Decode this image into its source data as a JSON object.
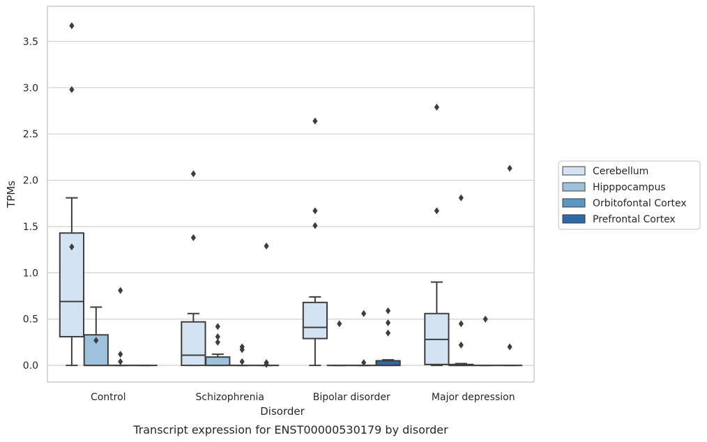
{
  "chart_data": {
    "type": "box",
    "title": "",
    "caption": "Transcript expression for ENST00000530179 by disorder",
    "xlabel": "Disorder",
    "ylabel": "TPMs",
    "ylim": [
      -0.18,
      3.88
    ],
    "yticks": [
      0.0,
      0.5,
      1.0,
      1.5,
      2.0,
      2.5,
      3.0,
      3.5
    ],
    "ytick_labels": [
      "0.0",
      "0.5",
      "1.0",
      "1.5",
      "2.0",
      "2.5",
      "3.0",
      "3.5"
    ],
    "grid": "horizontal",
    "legend_position": "right",
    "categories": [
      "Control",
      "Schizophrenia",
      "Bipolar disorder",
      "Major depression"
    ],
    "series": [
      {
        "name": "Cerebellum",
        "color": "#d3e3f1",
        "boxes": [
          {
            "q1": 0.31,
            "median": 0.69,
            "q3": 1.43,
            "whislo": 0.0,
            "whishi": 1.81,
            "fliers": [
              3.67,
              2.98,
              1.28
            ]
          },
          {
            "q1": 0.0,
            "median": 0.11,
            "q3": 0.47,
            "whislo": 0.0,
            "whishi": 0.56,
            "fliers": [
              2.07,
              1.38
            ]
          },
          {
            "q1": 0.29,
            "median": 0.41,
            "q3": 0.68,
            "whislo": 0.0,
            "whishi": 0.74,
            "fliers": [
              2.64,
              1.67,
              1.51
            ]
          },
          {
            "q1": 0.01,
            "median": 0.28,
            "q3": 0.56,
            "whislo": 0.0,
            "whishi": 0.9,
            "fliers": [
              2.79,
              1.67
            ]
          }
        ]
      },
      {
        "name": "Hipppocampus",
        "color": "#9ec2dc",
        "boxes": [
          {
            "q1": 0.0,
            "median": 0.0,
            "q3": 0.33,
            "whislo": 0.0,
            "whishi": 0.63,
            "fliers": [
              0.27
            ]
          },
          {
            "q1": 0.0,
            "median": 0.0,
            "q3": 0.09,
            "whislo": 0.0,
            "whishi": 0.12,
            "fliers": [
              0.42,
              0.31,
              0.25
            ]
          },
          {
            "q1": 0.0,
            "median": 0.0,
            "q3": 0.0,
            "whislo": 0.0,
            "whishi": 0.0,
            "fliers": [
              0.45
            ]
          },
          {
            "q1": 0.0,
            "median": 0.0,
            "q3": 0.01,
            "whislo": 0.0,
            "whishi": 0.02,
            "fliers": [
              0.45,
              0.22,
              1.81
            ]
          }
        ]
      },
      {
        "name": "Orbitofontal Cortex",
        "color": "#5b95c2",
        "boxes": [
          {
            "q1": 0.0,
            "median": 0.0,
            "q3": 0.0,
            "whislo": 0.0,
            "whishi": 0.0,
            "fliers": [
              0.81,
              0.12,
              0.04
            ]
          },
          {
            "q1": 0.0,
            "median": 0.0,
            "q3": 0.0,
            "whislo": 0.0,
            "whishi": 0.0,
            "fliers": [
              0.2,
              0.17,
              0.04
            ]
          },
          {
            "q1": 0.0,
            "median": 0.0,
            "q3": 0.0,
            "whislo": 0.0,
            "whishi": 0.0,
            "fliers": [
              0.56,
              0.03
            ]
          },
          {
            "q1": 0.0,
            "median": 0.0,
            "q3": 0.0,
            "whislo": 0.0,
            "whishi": 0.0,
            "fliers": [
              0.5
            ]
          }
        ]
      },
      {
        "name": "Prefrontal Cortex",
        "color": "#2f6aa6",
        "boxes": [
          {
            "q1": 0.0,
            "median": 0.0,
            "q3": 0.0,
            "whislo": 0.0,
            "whishi": 0.0,
            "fliers": []
          },
          {
            "q1": 0.0,
            "median": 0.0,
            "q3": 0.0,
            "whislo": 0.0,
            "whishi": 0.0,
            "fliers": [
              1.29,
              0.03,
              0.01
            ]
          },
          {
            "q1": 0.0,
            "median": 0.0,
            "q3": 0.05,
            "whislo": 0.0,
            "whishi": 0.06,
            "fliers": [
              0.59,
              0.46,
              0.35
            ]
          },
          {
            "q1": 0.0,
            "median": 0.0,
            "q3": 0.0,
            "whislo": 0.0,
            "whishi": 0.0,
            "fliers": [
              2.13,
              0.2
            ]
          }
        ]
      }
    ]
  }
}
